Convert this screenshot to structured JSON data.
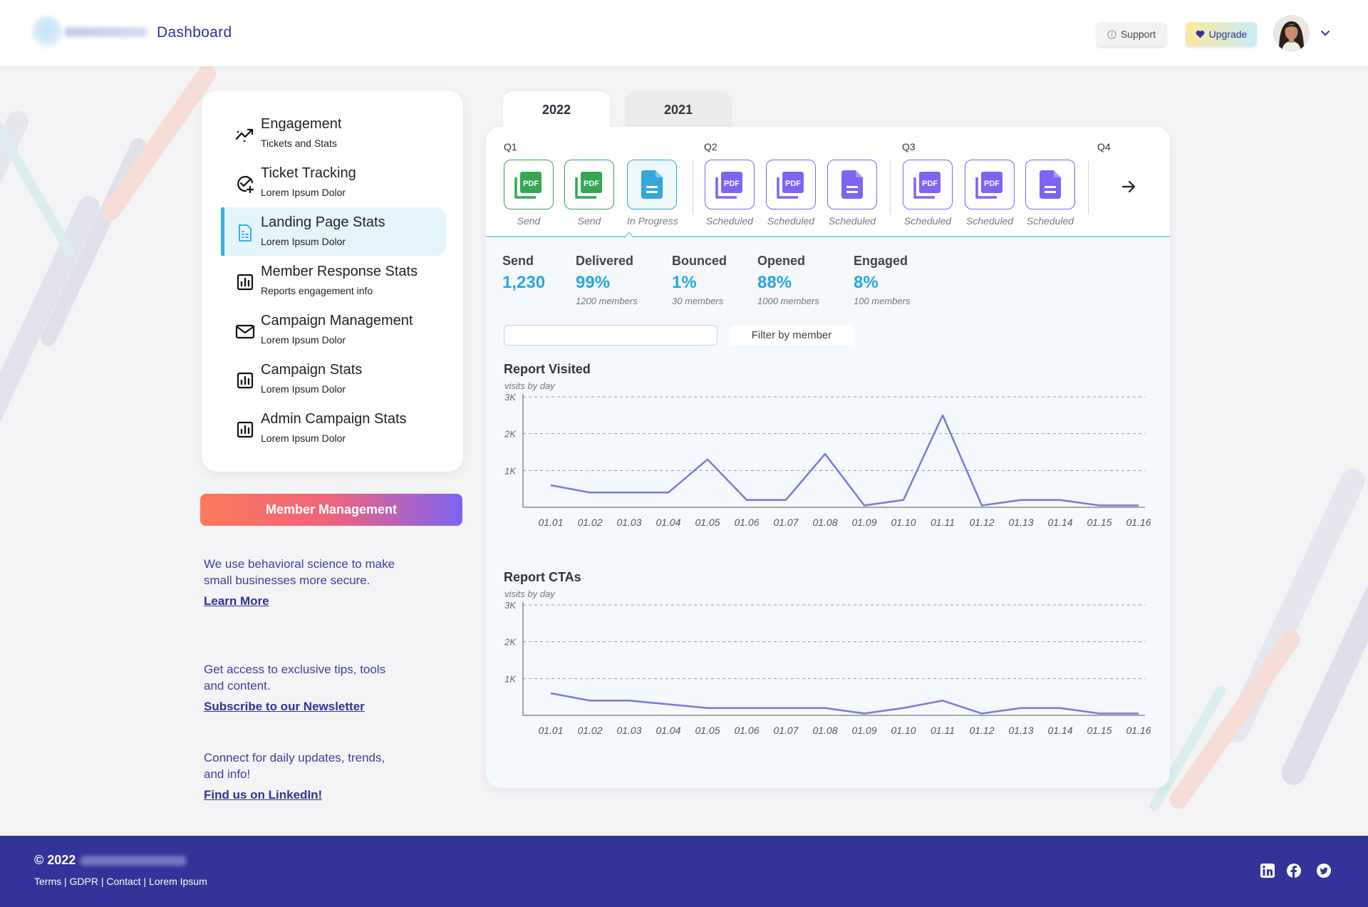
{
  "header": {
    "title": "Dashboard",
    "support_label": "Support",
    "upgrade_label": "Upgrade"
  },
  "sidebar": {
    "items": [
      {
        "title": "Engagement",
        "subtitle": "Tickets and Stats",
        "icon": "trend-up-icon"
      },
      {
        "title": "Ticket Tracking",
        "subtitle": "Lorem Ipsum Dolor",
        "icon": "check-circle-icon"
      },
      {
        "title": "Landing Page Stats",
        "subtitle": "Lorem Ipsum Dolor",
        "icon": "document-icon"
      },
      {
        "title": "Member Response Stats",
        "subtitle": "Reports engagement info",
        "icon": "bar-chart-icon"
      },
      {
        "title": "Campaign Management",
        "subtitle": "Lorem Ipsum Dolor",
        "icon": "mail-icon"
      },
      {
        "title": "Campaign Stats",
        "subtitle": "Lorem Ipsum Dolor",
        "icon": "bar-chart-icon"
      },
      {
        "title": "Admin Campaign Stats",
        "subtitle": "Lorem Ipsum Dolor",
        "icon": "bar-chart-icon"
      }
    ],
    "active_index": 2,
    "member_button": "Member Management",
    "promos": [
      {
        "text": "We use behavioral science to make small businesses more secure.",
        "link": "Learn More"
      },
      {
        "text": "Get access to exclusive tips, tools and content.",
        "link": "Subscribe to our Newsletter"
      },
      {
        "text": "Connect for daily updates, trends, and info!",
        "link": "Find us on LinkedIn!"
      }
    ]
  },
  "tabs": [
    {
      "label": "2022",
      "active": true
    },
    {
      "label": "2021",
      "active": false
    }
  ],
  "reports": {
    "quarters": [
      "Q1",
      "Q2",
      "Q3",
      "Q4"
    ],
    "items": [
      {
        "kind": "pdf",
        "color": "green",
        "label": "Send"
      },
      {
        "kind": "pdf",
        "color": "green",
        "label": "Send"
      },
      {
        "kind": "doc",
        "color": "blue",
        "label": "In Progress"
      },
      {
        "kind": "pdf",
        "color": "purple",
        "label": "Scheduled"
      },
      {
        "kind": "pdf",
        "color": "purple",
        "label": "Scheduled"
      },
      {
        "kind": "doc",
        "color": "purple",
        "label": "Scheduled"
      },
      {
        "kind": "pdf",
        "color": "purple",
        "label": "Scheduled"
      },
      {
        "kind": "pdf",
        "color": "purple",
        "label": "Scheduled"
      },
      {
        "kind": "doc",
        "color": "purple",
        "label": "Scheduled"
      }
    ],
    "pdf_text": "PDF"
  },
  "stats": [
    {
      "label": "Send",
      "value": "1,230",
      "sub": ""
    },
    {
      "label": "Delivered",
      "value": "99%",
      "sub": "1200 members"
    },
    {
      "label": "Bounced",
      "value": "1%",
      "sub": "30 members"
    },
    {
      "label": "Opened",
      "value": "88%",
      "sub": "1000 members"
    },
    {
      "label": "Engaged",
      "value": "8%",
      "sub": "100 members"
    }
  ],
  "filter": {
    "search_value": "",
    "button_label": "Filter by member"
  },
  "chart_data": [
    {
      "type": "line",
      "title": "Report Visited",
      "subtitle": "visits by day",
      "x": [
        "01.01",
        "01.02",
        "01.03",
        "01.04",
        "01.05",
        "01.06",
        "01.07",
        "01.08",
        "01.09",
        "01.10",
        "01.11",
        "01.12",
        "01.13",
        "01.14",
        "01.15",
        "01.16"
      ],
      "yticks": [
        "1K",
        "2K",
        "3K"
      ],
      "ylim": [
        0,
        3000
      ],
      "grid": true,
      "color": "#7b78d8",
      "values": [
        600,
        400,
        400,
        400,
        1300,
        200,
        200,
        1450,
        50,
        200,
        2500,
        50,
        200,
        200,
        50,
        50
      ]
    },
    {
      "type": "line",
      "title": "Report CTAs",
      "subtitle": "visits by day",
      "x": [
        "01.01",
        "01.02",
        "01.03",
        "01.04",
        "01.05",
        "01.06",
        "01.07",
        "01.08",
        "01.09",
        "01.10",
        "01.11",
        "01.12",
        "01.13",
        "01.14",
        "01.15",
        "01.16"
      ],
      "yticks": [
        "1K",
        "2K",
        "3K"
      ],
      "ylim": [
        0,
        3000
      ],
      "grid": true,
      "color": "#7b78d8",
      "values": [
        600,
        400,
        400,
        300,
        200,
        200,
        200,
        200,
        50,
        200,
        400,
        50,
        200,
        200,
        50,
        50
      ]
    }
  ],
  "footer": {
    "copyright": "© 2022",
    "links": "Terms | GDPR | Contact | Lorem Ipsum",
    "social": [
      "linkedin-icon",
      "facebook-icon",
      "twitter-icon"
    ]
  },
  "colors": {
    "accent": "#2f3394",
    "info": "#2aa7dc",
    "pdf_green": "#33a853",
    "purple": "#7f63f3",
    "footer_bg": "#323499"
  }
}
